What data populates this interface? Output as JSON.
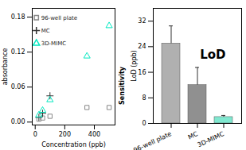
{
  "chart_data": [
    {
      "type": "scatter",
      "xlabel": "Concentration (ppb)",
      "ylabel": "absorbance",
      "series": [
        {
          "name": "96-well plate",
          "color": "#888888",
          "marker": "square",
          "x": [
            25,
            50,
            100,
            350,
            500
          ],
          "values": [
            0.005,
            0.007,
            0.01,
            0.025,
            0.025
          ]
        },
        {
          "name": "MC",
          "color": "#333333",
          "marker": "plus",
          "x": [
            25,
            50,
            100
          ],
          "values": [
            0.008,
            0.015,
            0.045
          ]
        },
        {
          "name": "3D-MIMC",
          "color": "#00e8c0",
          "marker": "triangle",
          "x": [
            25,
            50,
            100,
            350,
            500
          ],
          "values": [
            0.012,
            0.02,
            0.038,
            0.113,
            0.165
          ]
        }
      ],
      "xlim": [
        -20,
        540
      ],
      "ylim": [
        -0.005,
        0.195
      ],
      "xticks": [
        0,
        200,
        400
      ],
      "yticks": [
        {
          "value": 0,
          "label": "0.00"
        },
        0.06,
        0.12,
        0.18
      ],
      "legend": "upper left",
      "grid": false,
      "annotations": [
        "Sensitivity"
      ]
    },
    {
      "type": "bar",
      "ylabel": "LoD (ppb)",
      "categories": [
        "96-well plate",
        "MC",
        "3D-MIMC"
      ],
      "values": [
        25.0,
        12.0,
        2.0
      ],
      "errors": [
        5.5,
        5.5,
        0.5
      ],
      "colors": [
        "#b0b0b0",
        "#909090",
        "#80e8d0"
      ],
      "ylim": [
        0,
        36
      ],
      "yticks": [
        0,
        8,
        16,
        24,
        32
      ],
      "grid": false,
      "annotations": [
        "LoD"
      ]
    }
  ]
}
